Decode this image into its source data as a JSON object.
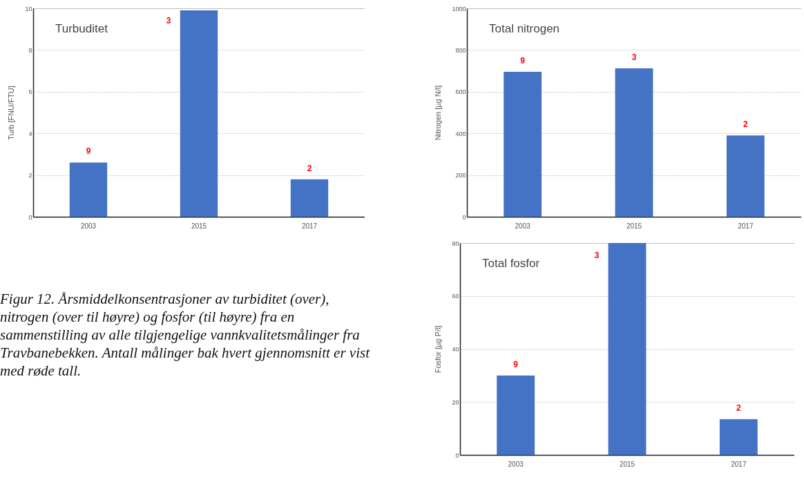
{
  "chart_data": [
    {
      "type": "bar",
      "title": "Turbuditet",
      "ylabel": "Turb [FNU/FTU]",
      "categories": [
        "2003",
        "2015",
        "2017"
      ],
      "values": [
        2.6,
        9.9,
        1.8
      ],
      "color": "#4472c4",
      "ylim": [
        0,
        10
      ],
      "yticks": [
        0,
        2,
        4,
        6,
        8,
        10
      ],
      "grid": "y",
      "annotations": [
        "9",
        "3",
        "2"
      ]
    },
    {
      "type": "bar",
      "title": "Total nitrogen",
      "ylabel": "Nitrogen [µg N/l]",
      "categories": [
        "2003",
        "2015",
        "2017"
      ],
      "values": [
        695,
        712,
        390
      ],
      "color": "#4472c4",
      "ylim": [
        0,
        1000
      ],
      "yticks": [
        0,
        200,
        400,
        600,
        800,
        1000
      ],
      "grid": "y",
      "annotations": [
        "9",
        "3",
        "2"
      ]
    },
    {
      "type": "other",
      "annotations": [
        "Figur 12. Årsmiddelkonsentrasjoner av turbiditet (over), nitrogen (over til høyre) og fosfor (til høyre) fra en sammenstilling av alle tilgjengelige vannkvalitetsmålinger fra Travbanebekken. Antall målinger bak hvert gjennomsnitt er vist med røde tall."
      ]
    },
    {
      "type": "bar",
      "title": "Total fosfor",
      "ylabel": "Fosfor [µg P/l]",
      "categories": [
        "2003",
        "2015",
        "2017"
      ],
      "values": [
        30,
        80,
        13.5
      ],
      "color": "#4472c4",
      "ylim": [
        0,
        80
      ],
      "yticks": [
        0,
        20,
        40,
        60,
        80
      ],
      "grid": "y",
      "annotations": [
        "9",
        "3",
        "2"
      ]
    }
  ]
}
